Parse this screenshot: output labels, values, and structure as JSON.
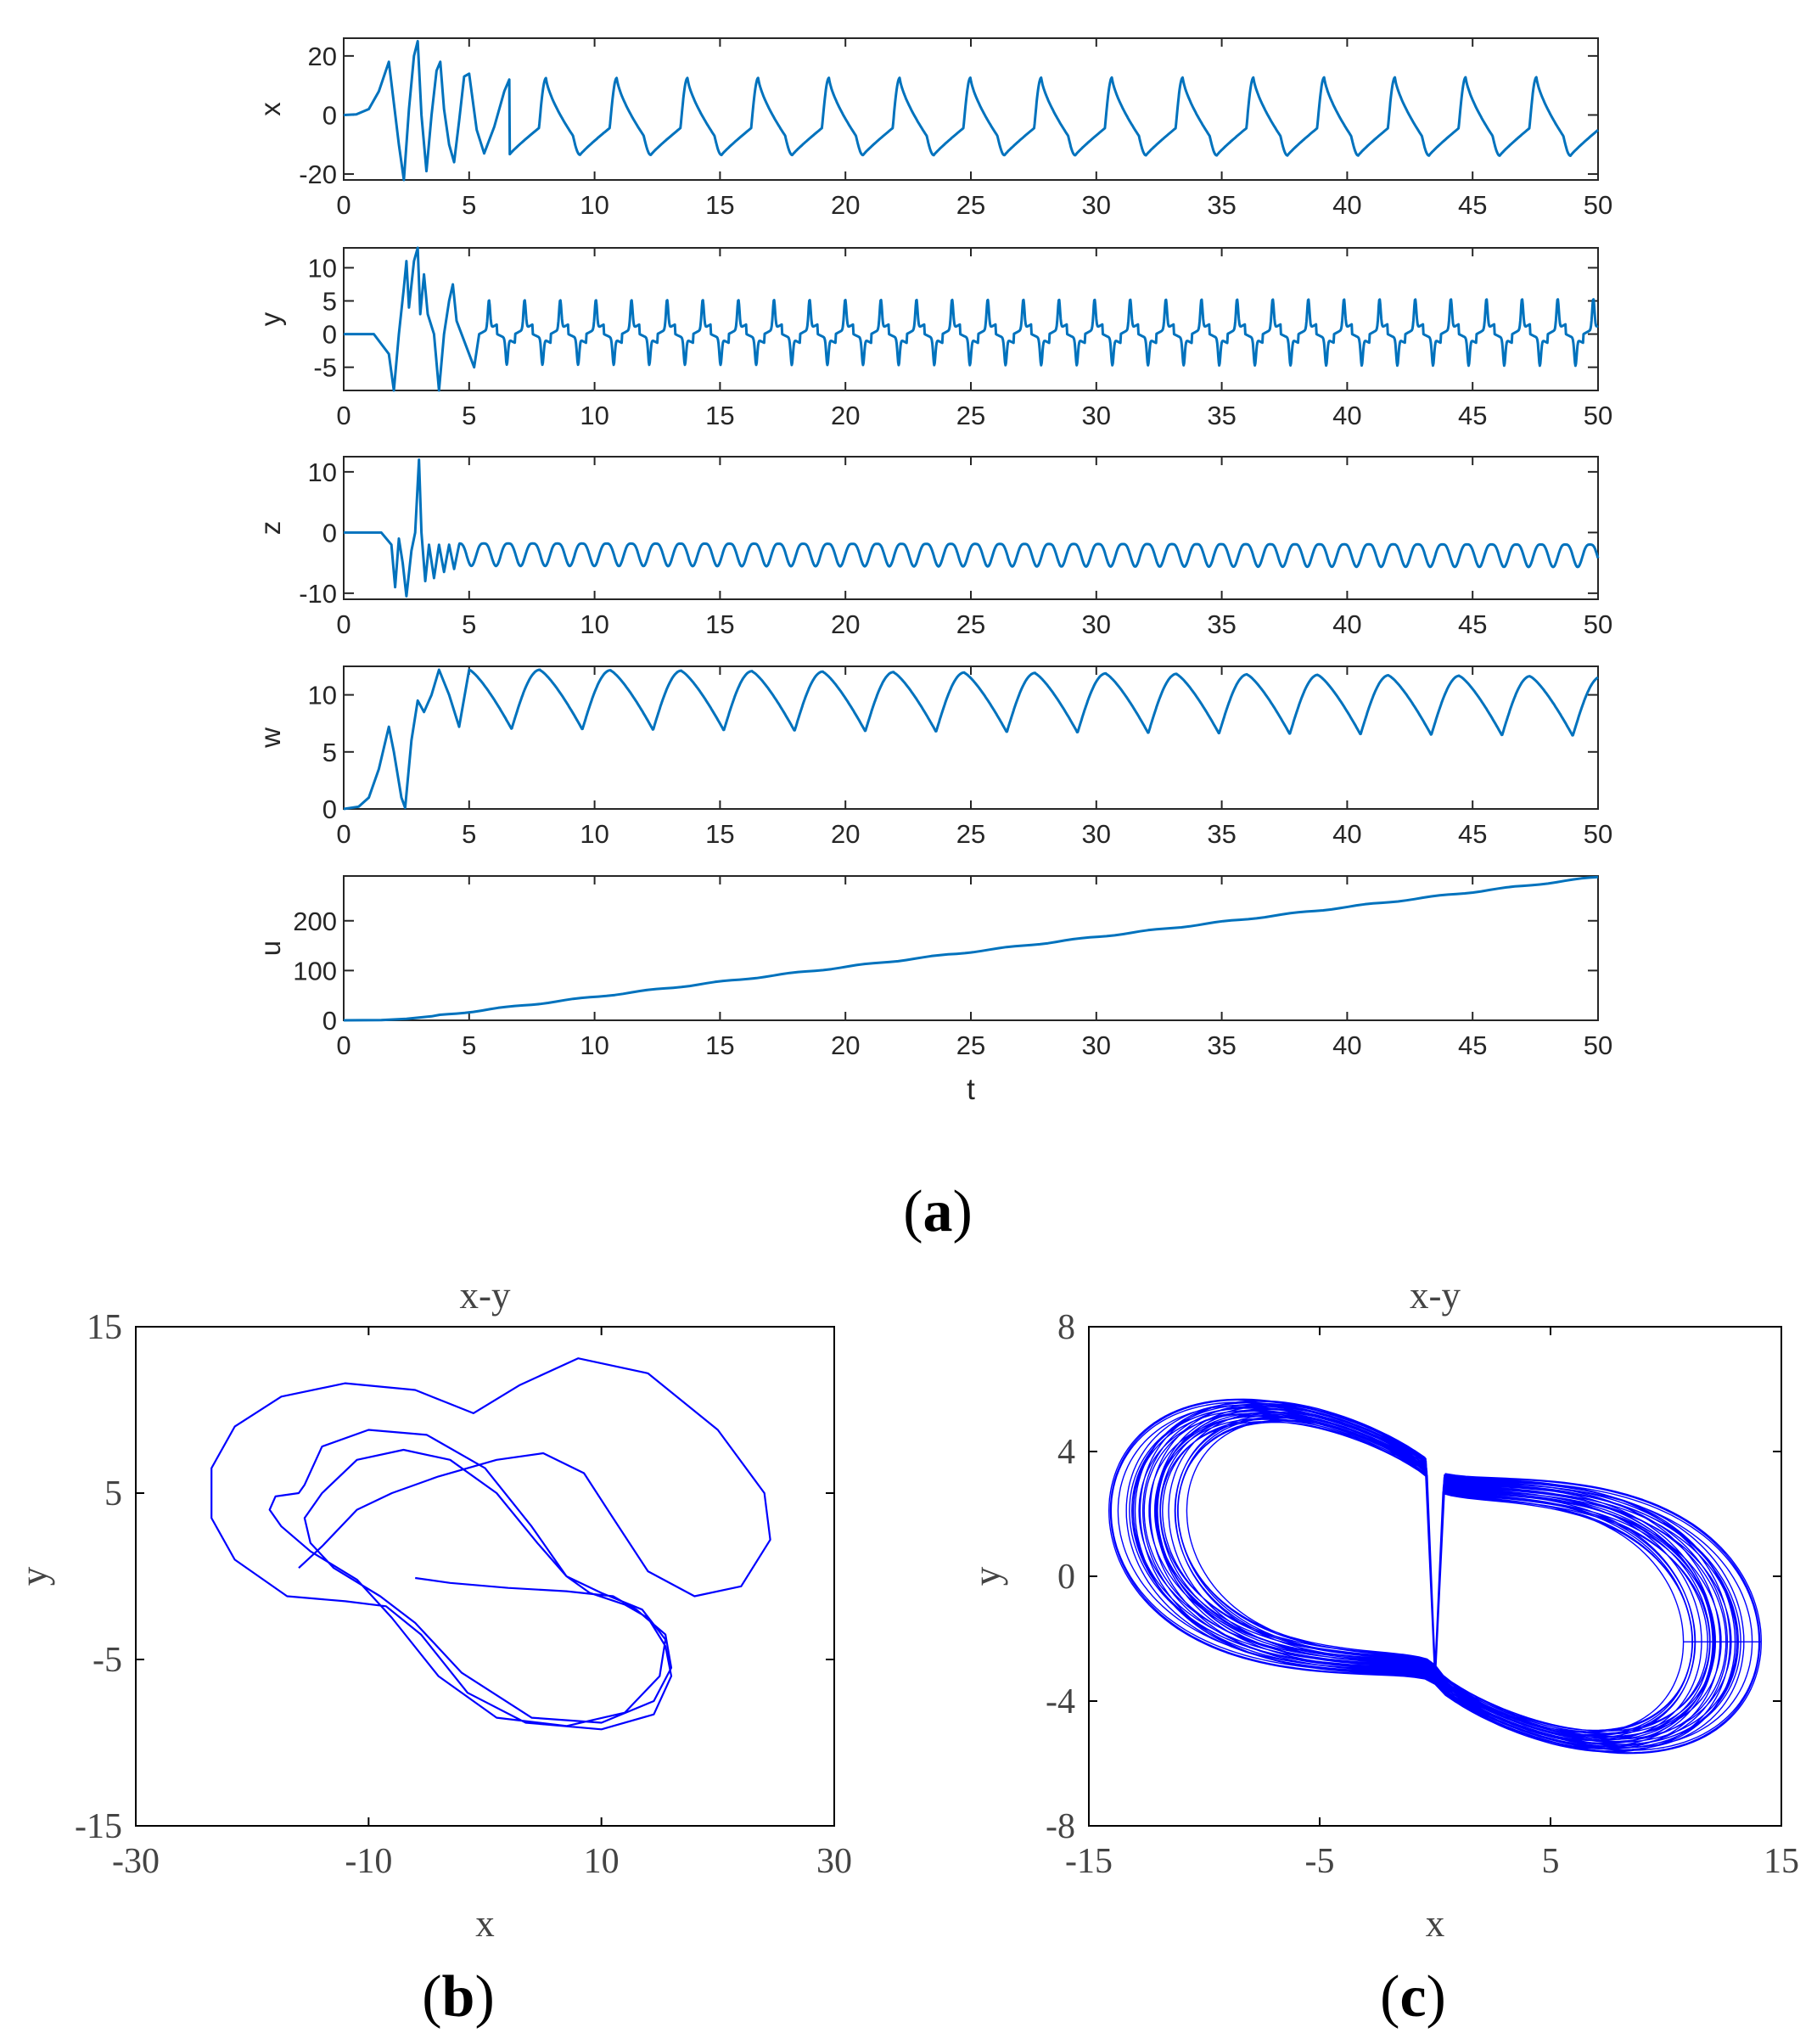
{
  "captions": {
    "a": "a",
    "b": "b",
    "c": "c"
  },
  "chart_data": [
    {
      "type": "line",
      "panel": "a",
      "xlabel": "t",
      "xlim": [
        0,
        50
      ],
      "xticks": [
        0,
        5,
        10,
        15,
        20,
        25,
        30,
        35,
        40,
        45,
        50
      ],
      "series_color": "#0072BD",
      "subplots": [
        {
          "ylabel": "x",
          "ylim": [
            -22,
            26
          ],
          "yticks": [
            -20,
            0,
            20
          ],
          "transient": [
            [
              0,
              0
            ],
            [
              0.5,
              0.2
            ],
            [
              1.0,
              2
            ],
            [
              1.4,
              8
            ],
            [
              1.8,
              18
            ],
            [
              2.0,
              4
            ],
            [
              2.2,
              -10
            ],
            [
              2.4,
              -22
            ],
            [
              2.6,
              2
            ],
            [
              2.8,
              20
            ],
            [
              2.95,
              25
            ],
            [
              3.1,
              0
            ],
            [
              3.3,
              -19
            ],
            [
              3.5,
              0
            ],
            [
              3.7,
              15
            ],
            [
              3.85,
              18
            ],
            [
              4.0,
              2
            ],
            [
              4.2,
              -10
            ],
            [
              4.4,
              -16
            ],
            [
              4.6,
              -2
            ],
            [
              4.8,
              13
            ],
            [
              5.0,
              14
            ],
            [
              5.3,
              -5
            ],
            [
              5.6,
              -13
            ],
            [
              6.0,
              -4
            ],
            [
              6.4,
              8
            ],
            [
              6.6,
              12
            ]
          ],
          "cycle": {
            "start": 6.6,
            "period": 2.82,
            "amp_hi": 12.5,
            "amp_lo": -13.5,
            "growth": 0.02,
            "shape": "xwave"
          }
        },
        {
          "ylabel": "y",
          "ylim": [
            -8.5,
            13
          ],
          "yticks": [
            -5,
            0,
            5,
            10
          ],
          "transient": [
            [
              0,
              0
            ],
            [
              1.2,
              0
            ],
            [
              1.8,
              -3
            ],
            [
              2.0,
              -8.5
            ],
            [
              2.2,
              0
            ],
            [
              2.4,
              7
            ],
            [
              2.5,
              11
            ],
            [
              2.6,
              4
            ],
            [
              2.8,
              11
            ],
            [
              2.95,
              13
            ],
            [
              3.05,
              3
            ],
            [
              3.2,
              9
            ],
            [
              3.35,
              3
            ],
            [
              3.6,
              0
            ],
            [
              3.8,
              -8.5
            ],
            [
              4.0,
              0
            ],
            [
              4.2,
              5
            ],
            [
              4.35,
              7.5
            ],
            [
              4.5,
              2
            ],
            [
              4.9,
              -2
            ],
            [
              5.2,
              -5
            ],
            [
              5.4,
              0
            ]
          ],
          "cycle": {
            "start": 5.4,
            "period": 1.42,
            "amp_hi": 5.8,
            "amp_lo": -5.2,
            "growth": 0.006,
            "shape": "spike"
          }
        },
        {
          "ylabel": "z",
          "ylim": [
            -11,
            12.5
          ],
          "yticks": [
            -10,
            0,
            10
          ],
          "transient": [
            [
              0,
              0
            ],
            [
              1.5,
              0
            ],
            [
              1.9,
              -2
            ],
            [
              2.05,
              -9
            ],
            [
              2.2,
              -1
            ],
            [
              2.35,
              -5
            ],
            [
              2.5,
              -10.5
            ],
            [
              2.7,
              -3
            ],
            [
              2.85,
              0
            ],
            [
              3.0,
              12
            ],
            [
              3.1,
              0
            ],
            [
              3.25,
              -8
            ],
            [
              3.4,
              -2
            ],
            [
              3.6,
              -7.5
            ],
            [
              3.8,
              -2
            ],
            [
              4.0,
              -6.5
            ],
            [
              4.2,
              -2
            ],
            [
              4.4,
              -6
            ],
            [
              4.6,
              -2
            ]
          ],
          "cycle": {
            "start": 4.6,
            "period": 0.98,
            "amp_hi": -1.8,
            "amp_lo": -5.5,
            "growth": 0.004,
            "shape": "bump"
          }
        },
        {
          "ylabel": "w",
          "ylim": [
            0,
            12.5
          ],
          "yticks": [
            0,
            5,
            10
          ],
          "transient": [
            [
              0,
              0
            ],
            [
              0.6,
              0.2
            ],
            [
              1.0,
              1
            ],
            [
              1.4,
              3.5
            ],
            [
              1.8,
              7.2
            ],
            [
              2.0,
              5
            ],
            [
              2.3,
              1
            ],
            [
              2.45,
              0.1
            ],
            [
              2.7,
              6
            ],
            [
              2.95,
              9.5
            ],
            [
              3.2,
              8.5
            ],
            [
              3.5,
              10
            ],
            [
              3.8,
              12.2
            ],
            [
              4.2,
              10
            ],
            [
              4.6,
              7.2
            ],
            [
              5.0,
              12.2
            ]
          ],
          "cycle": {
            "start": 5.0,
            "period": 2.82,
            "amp_hi": 12.2,
            "amp_lo": 7.0,
            "growth": -0.04,
            "shape": "saw"
          }
        },
        {
          "ylabel": "u",
          "ylim": [
            0,
            290
          ],
          "yticks": [
            0,
            100,
            200
          ],
          "transient": [
            [
              0,
              0
            ],
            [
              1.5,
              0.5
            ],
            [
              2.5,
              3
            ],
            [
              3.5,
              8
            ]
          ],
          "cycle": {
            "start": 3.5,
            "period": 0,
            "amp_hi": 0,
            "amp_lo": 0,
            "growth": 0,
            "shape": "ramp",
            "end_value": 288
          }
        }
      ]
    },
    {
      "type": "line",
      "panel": "b",
      "title": "x-y",
      "xlabel": "x",
      "ylabel": "y",
      "xlim": [
        -30,
        30
      ],
      "ylim": [
        -15,
        15
      ],
      "xticks": [
        -30,
        -10,
        10,
        30
      ],
      "yticks": [
        -15,
        -5,
        5,
        15
      ],
      "series_color": "#0000FF",
      "path": [
        [
          -6,
          -0.1
        ],
        [
          -3,
          -0.4
        ],
        [
          2,
          -0.7
        ],
        [
          7,
          -0.9
        ],
        [
          11,
          -1.2
        ],
        [
          13,
          -2
        ],
        [
          15.5,
          -3.5
        ],
        [
          16,
          -5.5
        ],
        [
          14.5,
          -7.5
        ],
        [
          10,
          -8.8
        ],
        [
          4,
          -8.5
        ],
        [
          -2,
          -5.8
        ],
        [
          -6,
          -2.8
        ],
        [
          -9,
          -1.2
        ],
        [
          -13,
          0.5
        ],
        [
          -15,
          2
        ],
        [
          -15.5,
          3.5
        ],
        [
          -14,
          5
        ],
        [
          -11,
          7
        ],
        [
          -7,
          7.6
        ],
        [
          -3,
          7
        ],
        [
          1,
          5
        ],
        [
          4.5,
          2
        ],
        [
          7,
          0
        ],
        [
          10,
          -1
        ],
        [
          13.5,
          -2
        ],
        [
          15.5,
          -3.8
        ],
        [
          15,
          -6
        ],
        [
          12,
          -8.2
        ],
        [
          7,
          -9
        ],
        [
          1,
          -8.5
        ],
        [
          -4,
          -6
        ],
        [
          -8,
          -2.5
        ],
        [
          -11,
          -0.2
        ],
        [
          -15,
          1.5
        ],
        [
          -17.5,
          3
        ],
        [
          -18.5,
          4
        ],
        [
          -18,
          4.8
        ],
        [
          -16,
          5
        ],
        [
          -15.5,
          5.5
        ],
        [
          -14,
          7.8
        ],
        [
          -10,
          8.8
        ],
        [
          -5,
          8.5
        ],
        [
          0,
          6.5
        ],
        [
          4,
          3
        ],
        [
          7,
          0
        ],
        [
          9,
          -1
        ],
        [
          12,
          -1.7
        ],
        [
          14,
          -2.5
        ],
        [
          15.5,
          -4.2
        ],
        [
          16,
          -6
        ],
        [
          14.5,
          -8.3
        ],
        [
          10,
          -9.2
        ],
        [
          3.5,
          -8.8
        ],
        [
          -1.5,
          -7
        ],
        [
          -5.5,
          -3.5
        ],
        [
          -8.5,
          -1.8
        ],
        [
          -12,
          -1.5
        ],
        [
          -17,
          -1.2
        ],
        [
          -21.5,
          1
        ],
        [
          -23.5,
          3.5
        ],
        [
          -23.5,
          6.5
        ],
        [
          -21.5,
          9
        ],
        [
          -17.5,
          10.8
        ],
        [
          -12,
          11.6
        ],
        [
          -6,
          11.2
        ],
        [
          -1,
          9.8
        ],
        [
          3,
          11.5
        ],
        [
          8,
          13.1
        ],
        [
          14,
          12.2
        ],
        [
          20,
          8.8
        ],
        [
          24,
          5
        ],
        [
          24.5,
          2.2
        ],
        [
          22,
          -0.6
        ],
        [
          18,
          -1.2
        ],
        [
          14,
          0.3
        ],
        [
          11,
          3.5
        ],
        [
          8.5,
          6.2
        ],
        [
          5,
          7.4
        ],
        [
          1,
          7
        ],
        [
          -4,
          6
        ],
        [
          -8,
          5
        ],
        [
          -11,
          4
        ],
        [
          -14,
          1.8
        ],
        [
          -16,
          0.5
        ]
      ]
    },
    {
      "type": "line",
      "panel": "c",
      "title": "x-y",
      "xlabel": "x",
      "ylabel": "y",
      "xlim": [
        -15,
        15
      ],
      "ylim": [
        -8,
        8
      ],
      "xticks": [
        -15,
        -5,
        5,
        15
      ],
      "yticks": [
        -8,
        -4,
        0,
        4,
        8
      ],
      "series_color": "#0000FF",
      "cycles": 32,
      "loop": {
        "xl": -13.6,
        "xr": 13.6,
        "ylo": 0.1,
        "yhi": 6.3
      }
    }
  ]
}
